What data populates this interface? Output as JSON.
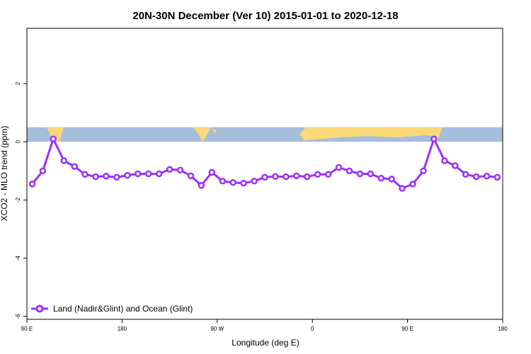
{
  "chart_data": {
    "type": "line",
    "title": "20N-30N December (Ver 10)   2015-01-01 to 2020-12-18",
    "xlabel": "Longitude (deg E)",
    "ylabel": "XCO2 - MLO trend (ppm)",
    "xlim": [
      90,
      540
    ],
    "ylim": [
      -6.1,
      3.9
    ],
    "x_ticks": [
      {
        "value": 90,
        "label": "90 E"
      },
      {
        "value": 180,
        "label": "180"
      },
      {
        "value": 270,
        "label": "90 W"
      },
      {
        "value": 360,
        "label": "0"
      },
      {
        "value": 450,
        "label": "90 E"
      },
      {
        "value": 540,
        "label": "180"
      }
    ],
    "y_ticks": [
      {
        "value": -6,
        "label": "-6"
      },
      {
        "value": -4,
        "label": "-4"
      },
      {
        "value": -2,
        "label": "-2"
      },
      {
        "value": 0,
        "label": "0"
      },
      {
        "value": 2,
        "label": "2"
      }
    ],
    "map_strip": {
      "ymin": 0,
      "ymax": 0.5,
      "ocean_color": "#a7bddc",
      "land_color": "#fcd878"
    },
    "grid": false,
    "legend_position": "bottom-left",
    "series": [
      {
        "name": "Land (Nadir&Glint) and Ocean (Glint)",
        "color": "#9b30ff",
        "x": [
          95,
          105,
          115,
          125,
          135,
          145,
          155,
          165,
          175,
          185,
          195,
          205,
          215,
          225,
          235,
          245,
          255,
          265,
          275,
          285,
          295,
          305,
          315,
          325,
          335,
          345,
          355,
          365,
          375,
          385,
          395,
          405,
          415,
          425,
          435,
          445,
          455,
          465,
          475,
          485,
          495,
          505,
          515,
          525,
          535
        ],
        "y": [
          -1.45,
          -1.0,
          0.1,
          -0.65,
          -0.85,
          -1.12,
          -1.2,
          -1.18,
          -1.22,
          -1.15,
          -1.1,
          -1.1,
          -1.1,
          -0.95,
          -0.97,
          -1.17,
          -1.5,
          -1.05,
          -1.35,
          -1.4,
          -1.42,
          -1.35,
          -1.22,
          -1.19,
          -1.2,
          -1.17,
          -1.2,
          -1.12,
          -1.12,
          -0.88,
          -1.0,
          -1.1,
          -1.1,
          -1.25,
          -1.28,
          -1.6,
          -1.45,
          -1.0,
          0.1,
          -0.65,
          -0.82,
          -1.12,
          -1.2,
          -1.18,
          -1.22
        ]
      }
    ]
  }
}
